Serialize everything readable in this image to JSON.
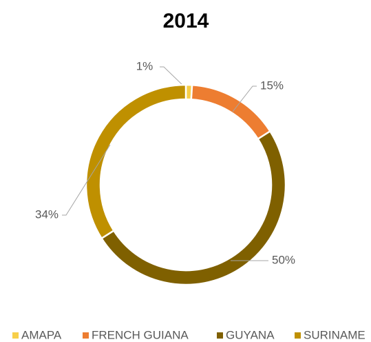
{
  "chart_data": {
    "type": "donut",
    "title": "2014",
    "categories": [
      "AMAPA",
      "FRENCH GUIANA",
      "GUYANA",
      "SURINAME"
    ],
    "values": [
      1,
      15,
      50,
      34
    ],
    "value_labels": [
      "1%",
      "15%",
      "50%",
      "34%"
    ],
    "colors": [
      "#f7cf4a",
      "#ed7d31",
      "#7f6000",
      "#bf9000"
    ],
    "legend": "bottom"
  }
}
